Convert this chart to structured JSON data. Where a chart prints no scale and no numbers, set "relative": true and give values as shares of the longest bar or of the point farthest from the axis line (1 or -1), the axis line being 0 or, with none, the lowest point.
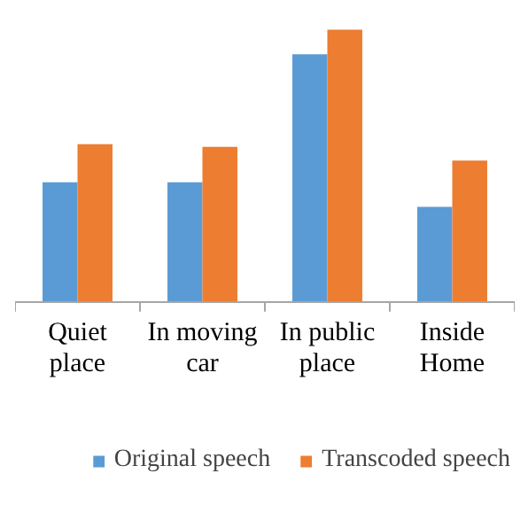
{
  "chart_data": {
    "type": "bar",
    "relative": true,
    "categories": [
      "Quiet place",
      "In moving car",
      "In public place",
      "Inside Home"
    ],
    "series": [
      {
        "name": "Original speech",
        "color": "#5b9bd5",
        "values": [
          0.44,
          0.44,
          0.91,
          0.35
        ]
      },
      {
        "name": "Transcoded speech",
        "color": "#ed7d31",
        "values": [
          0.58,
          0.57,
          1,
          0.52
        ]
      }
    ],
    "legend": "bottom"
  }
}
